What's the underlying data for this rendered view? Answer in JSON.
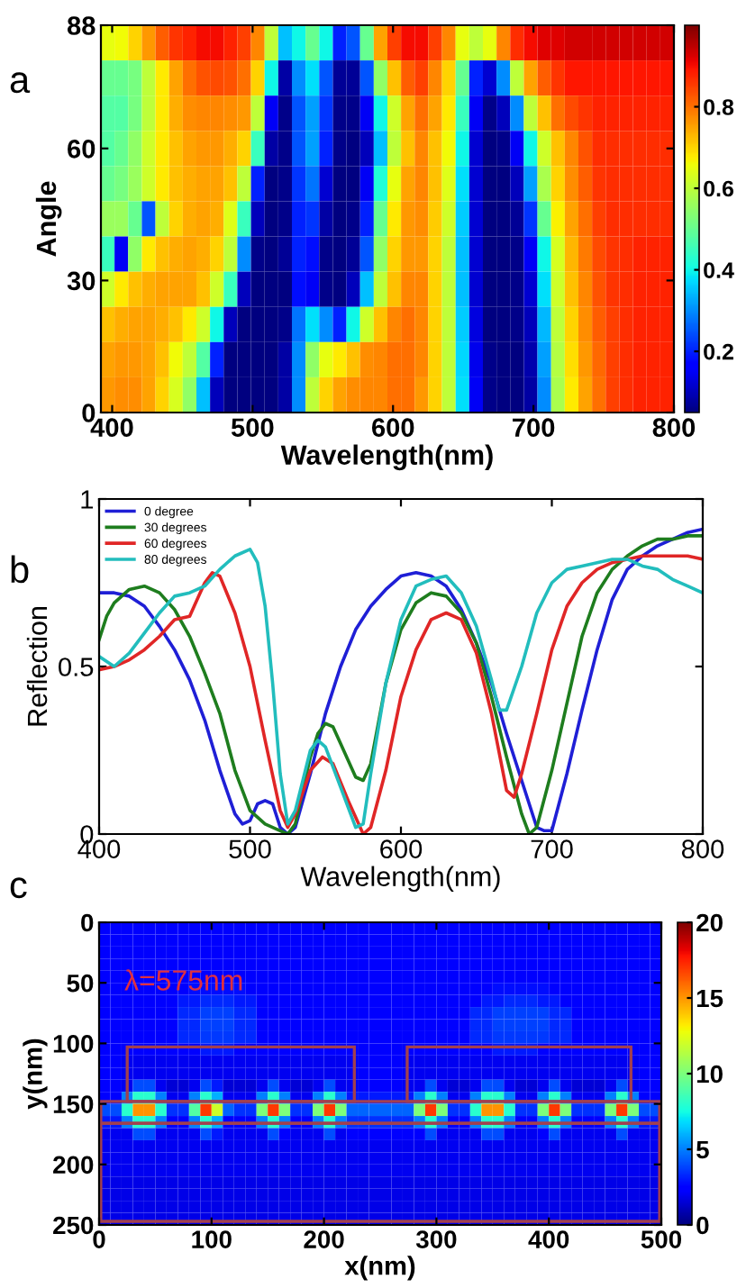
{
  "chart_data": [
    {
      "type": "heatmap",
      "title": "a",
      "xlabel": "Wavelength(nm)",
      "ylabel": "Angle",
      "xlim": [
        392,
        800
      ],
      "xticks": [
        400,
        500,
        600,
        700,
        800
      ],
      "ylim": [
        0,
        88
      ],
      "yticks": [
        0,
        30,
        60,
        88
      ],
      "clim": [
        0.05,
        1.0
      ],
      "cticks": [
        0.2,
        0.4,
        0.6,
        0.8
      ],
      "cells": [
        [
          0.65,
          0.66,
          0.7,
          0.76,
          0.82,
          0.86,
          0.88,
          0.9,
          0.9,
          0.88,
          0.85,
          0.78,
          0.6,
          0.35,
          0.4,
          0.5,
          0.4,
          0.2,
          0.25,
          0.5,
          0.75,
          0.85,
          0.9,
          0.9,
          0.85,
          0.78,
          0.65,
          0.6,
          0.65,
          0.78,
          0.87,
          0.9,
          0.92,
          0.92,
          0.93,
          0.93,
          0.93,
          0.93,
          0.93,
          0.93,
          0.93,
          0.93
        ],
        [
          0.5,
          0.5,
          0.52,
          0.6,
          0.68,
          0.75,
          0.8,
          0.83,
          0.84,
          0.83,
          0.8,
          0.7,
          0.4,
          0.08,
          0.3,
          0.38,
          0.25,
          0.07,
          0.07,
          0.25,
          0.55,
          0.72,
          0.82,
          0.85,
          0.78,
          0.7,
          0.5,
          0.2,
          0.12,
          0.3,
          0.6,
          0.75,
          0.82,
          0.86,
          0.89,
          0.89,
          0.89,
          0.89,
          0.89,
          0.89,
          0.89,
          0.89
        ],
        [
          0.48,
          0.48,
          0.52,
          0.6,
          0.68,
          0.74,
          0.77,
          0.78,
          0.78,
          0.77,
          0.76,
          0.6,
          0.15,
          0.06,
          0.25,
          0.32,
          0.22,
          0.06,
          0.06,
          0.15,
          0.4,
          0.62,
          0.75,
          0.8,
          0.75,
          0.68,
          0.45,
          0.15,
          0.06,
          0.1,
          0.3,
          0.6,
          0.72,
          0.8,
          0.84,
          0.86,
          0.88,
          0.88,
          0.88,
          0.88,
          0.88,
          0.88
        ],
        [
          0.48,
          0.5,
          0.55,
          0.62,
          0.68,
          0.72,
          0.75,
          0.76,
          0.76,
          0.74,
          0.7,
          0.45,
          0.08,
          0.06,
          0.25,
          0.32,
          0.2,
          0.06,
          0.05,
          0.1,
          0.35,
          0.6,
          0.72,
          0.78,
          0.72,
          0.66,
          0.4,
          0.12,
          0.05,
          0.06,
          0.15,
          0.4,
          0.62,
          0.72,
          0.78,
          0.83,
          0.87,
          0.87,
          0.87,
          0.87,
          0.87,
          0.87
        ],
        [
          0.5,
          0.52,
          0.56,
          0.62,
          0.68,
          0.72,
          0.74,
          0.75,
          0.75,
          0.72,
          0.6,
          0.2,
          0.05,
          0.06,
          0.22,
          0.28,
          0.12,
          0.05,
          0.05,
          0.15,
          0.42,
          0.65,
          0.75,
          0.78,
          0.72,
          0.64,
          0.38,
          0.12,
          0.05,
          0.05,
          0.1,
          0.32,
          0.58,
          0.7,
          0.77,
          0.82,
          0.86,
          0.87,
          0.87,
          0.87,
          0.87,
          0.87
        ],
        [
          0.56,
          0.56,
          0.5,
          0.25,
          0.6,
          0.7,
          0.74,
          0.75,
          0.74,
          0.64,
          0.45,
          0.1,
          0.05,
          0.06,
          0.2,
          0.22,
          0.08,
          0.05,
          0.06,
          0.2,
          0.5,
          0.68,
          0.76,
          0.77,
          0.71,
          0.62,
          0.36,
          0.12,
          0.05,
          0.05,
          0.07,
          0.22,
          0.5,
          0.67,
          0.75,
          0.8,
          0.85,
          0.87,
          0.87,
          0.87,
          0.87,
          0.87
        ],
        [
          0.45,
          0.15,
          0.55,
          0.68,
          0.72,
          0.74,
          0.75,
          0.74,
          0.7,
          0.6,
          0.3,
          0.06,
          0.05,
          0.07,
          0.2,
          0.18,
          0.06,
          0.05,
          0.07,
          0.25,
          0.55,
          0.7,
          0.76,
          0.76,
          0.7,
          0.6,
          0.35,
          0.12,
          0.05,
          0.05,
          0.06,
          0.15,
          0.4,
          0.63,
          0.73,
          0.79,
          0.84,
          0.86,
          0.87,
          0.88,
          0.88,
          0.88
        ],
        [
          0.62,
          0.68,
          0.72,
          0.74,
          0.75,
          0.75,
          0.75,
          0.72,
          0.62,
          0.45,
          0.1,
          0.05,
          0.05,
          0.05,
          0.18,
          0.15,
          0.06,
          0.05,
          0.1,
          0.35,
          0.6,
          0.72,
          0.78,
          0.78,
          0.7,
          0.6,
          0.35,
          0.12,
          0.05,
          0.05,
          0.06,
          0.12,
          0.38,
          0.62,
          0.72,
          0.78,
          0.83,
          0.86,
          0.87,
          0.88,
          0.88,
          0.88
        ],
        [
          0.72,
          0.74,
          0.75,
          0.75,
          0.74,
          0.72,
          0.68,
          0.62,
          0.4,
          0.1,
          0.05,
          0.05,
          0.05,
          0.06,
          0.28,
          0.38,
          0.3,
          0.2,
          0.4,
          0.62,
          0.72,
          0.78,
          0.8,
          0.78,
          0.7,
          0.6,
          0.36,
          0.13,
          0.05,
          0.05,
          0.06,
          0.1,
          0.34,
          0.6,
          0.7,
          0.77,
          0.82,
          0.85,
          0.87,
          0.88,
          0.88,
          0.88
        ],
        [
          0.75,
          0.76,
          0.76,
          0.75,
          0.72,
          0.66,
          0.6,
          0.48,
          0.2,
          0.05,
          0.05,
          0.05,
          0.05,
          0.08,
          0.3,
          0.55,
          0.65,
          0.68,
          0.72,
          0.77,
          0.78,
          0.8,
          0.8,
          0.78,
          0.7,
          0.6,
          0.37,
          0.14,
          0.06,
          0.05,
          0.05,
          0.09,
          0.32,
          0.59,
          0.69,
          0.76,
          0.81,
          0.85,
          0.87,
          0.88,
          0.88,
          0.88
        ],
        [
          0.76,
          0.77,
          0.77,
          0.75,
          0.7,
          0.63,
          0.55,
          0.35,
          0.1,
          0.05,
          0.05,
          0.05,
          0.05,
          0.08,
          0.3,
          0.6,
          0.7,
          0.75,
          0.77,
          0.78,
          0.78,
          0.8,
          0.8,
          0.76,
          0.7,
          0.6,
          0.38,
          0.15,
          0.06,
          0.05,
          0.05,
          0.08,
          0.3,
          0.58,
          0.68,
          0.75,
          0.8,
          0.85,
          0.87,
          0.88,
          0.88,
          0.88
        ]
      ]
    },
    {
      "type": "line",
      "title": "b",
      "xlabel": "Wavelength(nm)",
      "ylabel": "Reflection",
      "xlim": [
        400,
        800
      ],
      "xticks": [
        400,
        500,
        600,
        700,
        800
      ],
      "ylim": [
        0,
        1
      ],
      "yticks": [
        0,
        0.5,
        1
      ],
      "legend": "top left",
      "series": [
        {
          "name": "0 degree",
          "color": "#1f1fd6",
          "x": [
            400,
            410,
            420,
            430,
            440,
            450,
            460,
            470,
            480,
            490,
            495,
            500,
            505,
            510,
            515,
            520,
            525,
            530,
            540,
            550,
            560,
            570,
            580,
            590,
            600,
            610,
            620,
            630,
            640,
            650,
            660,
            670,
            680,
            690,
            695,
            700,
            710,
            720,
            730,
            740,
            750,
            760,
            770,
            780,
            790,
            800
          ],
          "values": [
            0.72,
            0.72,
            0.71,
            0.68,
            0.62,
            0.55,
            0.46,
            0.34,
            0.19,
            0.06,
            0.03,
            0.04,
            0.09,
            0.1,
            0.09,
            0.02,
            0.0,
            0.02,
            0.18,
            0.36,
            0.5,
            0.61,
            0.68,
            0.73,
            0.77,
            0.78,
            0.77,
            0.74,
            0.67,
            0.57,
            0.45,
            0.3,
            0.16,
            0.02,
            0.01,
            0.01,
            0.18,
            0.37,
            0.55,
            0.7,
            0.79,
            0.83,
            0.86,
            0.88,
            0.9,
            0.91
          ]
        },
        {
          "name": "30 degrees",
          "color": "#1e7d1e",
          "x": [
            400,
            405,
            410,
            420,
            430,
            440,
            450,
            460,
            470,
            480,
            490,
            500,
            510,
            520,
            525,
            530,
            540,
            545,
            550,
            555,
            560,
            570,
            575,
            580,
            590,
            600,
            610,
            620,
            630,
            640,
            650,
            660,
            670,
            680,
            685,
            690,
            700,
            710,
            720,
            730,
            740,
            750,
            760,
            770,
            780,
            790,
            800
          ],
          "values": [
            0.58,
            0.65,
            0.69,
            0.73,
            0.74,
            0.72,
            0.67,
            0.59,
            0.48,
            0.36,
            0.19,
            0.07,
            0.03,
            0.01,
            0.0,
            0.03,
            0.23,
            0.3,
            0.33,
            0.32,
            0.27,
            0.17,
            0.16,
            0.21,
            0.45,
            0.61,
            0.69,
            0.72,
            0.71,
            0.66,
            0.57,
            0.41,
            0.23,
            0.06,
            0.0,
            0.02,
            0.19,
            0.39,
            0.59,
            0.72,
            0.79,
            0.83,
            0.86,
            0.88,
            0.88,
            0.89,
            0.89
          ]
        },
        {
          "name": "60 degrees",
          "color": "#e02626",
          "x": [
            400,
            410,
            420,
            430,
            440,
            450,
            460,
            465,
            470,
            475,
            480,
            490,
            500,
            510,
            520,
            525,
            530,
            540,
            548,
            555,
            565,
            575,
            580,
            590,
            600,
            610,
            620,
            630,
            640,
            650,
            660,
            670,
            675,
            680,
            690,
            700,
            710,
            720,
            730,
            740,
            750,
            760,
            770,
            780,
            790,
            800
          ],
          "values": [
            0.49,
            0.5,
            0.52,
            0.55,
            0.59,
            0.64,
            0.65,
            0.7,
            0.75,
            0.78,
            0.77,
            0.66,
            0.5,
            0.28,
            0.07,
            0.02,
            0.06,
            0.19,
            0.23,
            0.21,
            0.1,
            0.0,
            0.02,
            0.19,
            0.41,
            0.55,
            0.64,
            0.66,
            0.64,
            0.54,
            0.36,
            0.13,
            0.11,
            0.18,
            0.36,
            0.55,
            0.68,
            0.75,
            0.79,
            0.81,
            0.82,
            0.83,
            0.83,
            0.83,
            0.83,
            0.82
          ]
        },
        {
          "name": "80 degrees",
          "color": "#22bdbd",
          "x": [
            400,
            410,
            420,
            430,
            440,
            450,
            460,
            470,
            480,
            490,
            500,
            505,
            510,
            515,
            520,
            525,
            530,
            540,
            545,
            550,
            560,
            570,
            575,
            580,
            590,
            600,
            610,
            620,
            630,
            640,
            650,
            660,
            665,
            670,
            680,
            690,
            700,
            710,
            720,
            730,
            740,
            750,
            760,
            770,
            780,
            790,
            800
          ],
          "values": [
            0.53,
            0.5,
            0.54,
            0.6,
            0.66,
            0.71,
            0.72,
            0.74,
            0.79,
            0.83,
            0.85,
            0.81,
            0.68,
            0.45,
            0.18,
            0.03,
            0.07,
            0.25,
            0.28,
            0.26,
            0.14,
            0.02,
            0.03,
            0.18,
            0.45,
            0.64,
            0.74,
            0.76,
            0.77,
            0.72,
            0.62,
            0.46,
            0.37,
            0.37,
            0.5,
            0.66,
            0.75,
            0.79,
            0.8,
            0.81,
            0.82,
            0.82,
            0.8,
            0.79,
            0.76,
            0.74,
            0.72
          ]
        }
      ]
    },
    {
      "type": "heatmap",
      "title": "c",
      "xlabel": "x(nm)",
      "ylabel": "y(nm)",
      "annotations": [
        "λ=575nm"
      ],
      "xlim": [
        0,
        500
      ],
      "xticks": [
        0,
        100,
        200,
        300,
        400,
        500
      ],
      "ylim": [
        250,
        0
      ],
      "yticks": [
        0,
        50,
        100,
        150,
        200,
        250
      ],
      "clim": [
        0,
        20
      ],
      "cticks": [
        0,
        5,
        10,
        15,
        20
      ],
      "cells": [
        [
          2.5,
          2.5,
          2.5,
          2.5,
          2.5,
          2.5,
          2.5,
          2.5,
          2.5,
          2.5,
          2.5,
          2.5,
          2.5,
          2.5,
          2.5,
          2.5,
          2.5,
          2.5,
          2.5,
          2.5,
          2.5,
          2.5,
          2.5,
          2.5,
          2.5,
          2.5,
          2.5,
          2.5,
          2.5,
          2.5,
          2.5,
          2.5,
          2.5,
          2.5,
          2.5,
          2.5,
          2.5,
          2.5,
          2.5,
          2.5,
          2.5,
          2.5,
          2.5,
          2.5,
          2.5,
          2.5,
          2.5,
          2.5,
          2.5,
          2.5
        ],
        [
          2.5,
          2.5,
          2.5,
          2.5,
          2.5,
          2.5,
          2.5,
          2.5,
          2.5,
          2.5,
          2.5,
          2.5,
          2.5,
          2.5,
          2.5,
          2.5,
          2.5,
          2.5,
          2.5,
          2.5,
          2.5,
          2.5,
          2.5,
          2.5,
          2.5,
          2.5,
          2.5,
          2.5,
          2.5,
          2.5,
          2.5,
          2.5,
          2.5,
          2.5,
          2.5,
          2.5,
          2.5,
          2.5,
          2.5,
          2.5,
          2.5,
          2.5,
          2.5,
          2.5,
          2.5,
          2.5,
          2.5,
          2.5,
          2.5,
          2.5
        ],
        [
          2.5,
          2.5,
          2.5,
          2.5,
          2.5,
          2.5,
          2.5,
          2.5,
          2.5,
          2.5,
          2.5,
          2.5,
          2.5,
          2.5,
          2.5,
          2.5,
          2.5,
          2.5,
          2.5,
          2.5,
          2.5,
          2.5,
          2.5,
          2.5,
          2.5,
          2.5,
          2.5,
          2.5,
          2.5,
          2.5,
          2.5,
          2.5,
          2.5,
          2.5,
          2.5,
          2.5,
          2.5,
          2.5,
          2.5,
          2.5,
          2.5,
          2.5,
          2.5,
          2.5,
          2.5,
          2.5,
          2.5,
          2.5,
          2.5,
          2.5
        ],
        [
          2.5,
          2.5,
          2.5,
          2.5,
          2.5,
          2.5,
          2.5,
          2.5,
          2.5,
          2.5,
          2.5,
          2.5,
          2.5,
          2.5,
          2.5,
          2.5,
          2.5,
          2.5,
          2.5,
          2.5,
          2.5,
          2.5,
          2.5,
          2.5,
          2.5,
          2.5,
          2.5,
          2.5,
          2.5,
          2.5,
          2.5,
          2.5,
          2.5,
          2.5,
          2.5,
          2.5,
          2.5,
          2.5,
          2.5,
          2.5,
          2.5,
          2.5,
          2.5,
          2.5,
          2.5,
          2.5,
          2.5,
          2.5,
          2.5,
          2.5
        ],
        [
          2.5,
          2.5,
          2.5,
          2.5,
          2.5,
          2.5,
          2.5,
          2.5,
          2.5,
          2.5,
          2.5,
          2.5,
          2.5,
          2.5,
          2.5,
          2.5,
          2.5,
          2.5,
          2.5,
          2.5,
          2.5,
          2.5,
          2.5,
          2.5,
          2.5,
          2.5,
          2.5,
          2.5,
          2.5,
          2.5,
          2.5,
          2.5,
          2.5,
          2.5,
          2.5,
          2.5,
          2.5,
          2.5,
          2.5,
          2.5,
          2.5,
          2.5,
          2.5,
          2.5,
          2.5,
          2.5,
          2.5,
          2.5,
          2.5,
          2.5
        ],
        [
          2.5,
          2.5,
          2.5,
          2.5,
          2.5,
          2.5,
          2.5,
          2.5,
          2.8,
          2.8,
          2.8,
          2.8,
          2.8,
          2.5,
          2.5,
          2.5,
          2.5,
          2.5,
          2.5,
          2.5,
          2.5,
          2.5,
          2.5,
          2.5,
          2.5,
          2.5,
          2.5,
          2.5,
          2.5,
          2.5,
          2.5,
          2.5,
          2.5,
          2.5,
          2.5,
          2.8,
          2.8,
          2.8,
          2.8,
          2.8,
          2.5,
          2.5,
          2.5,
          2.5,
          2.5,
          2.5,
          2.5,
          2.5,
          2.5,
          2.5
        ],
        [
          2.5,
          2.5,
          2.5,
          2.5,
          2.5,
          2.5,
          2.5,
          3,
          3,
          3.3,
          3.3,
          3.3,
          3,
          3,
          2.5,
          2.5,
          2.5,
          2.5,
          2.5,
          2.5,
          2.5,
          2.5,
          2.5,
          2.5,
          2.5,
          2.5,
          2.5,
          2.5,
          2.5,
          2.5,
          2.5,
          2.5,
          2.5,
          2.5,
          3,
          3,
          3.3,
          3.3,
          3.3,
          3,
          3,
          2.5,
          2.5,
          2.5,
          2.5,
          2.5,
          2.5,
          2.5,
          2.5,
          2.5
        ],
        [
          2.5,
          2.5,
          2.5,
          2.5,
          2.5,
          2.5,
          2.5,
          3.3,
          3.3,
          3.8,
          3.8,
          3.8,
          3.3,
          3.3,
          2.5,
          2.5,
          2.5,
          2.5,
          2.5,
          2.5,
          2.5,
          2.5,
          2.5,
          2.5,
          2.5,
          2.5,
          2.5,
          2.5,
          2.5,
          2.5,
          2.5,
          2.5,
          2.5,
          3.3,
          3.3,
          3.8,
          3.8,
          3.8,
          3.8,
          3.8,
          3.3,
          3.3,
          2.5,
          2.5,
          2.5,
          2.5,
          2.5,
          2.5,
          2.5,
          2.5
        ],
        [
          2.5,
          2.5,
          2.5,
          2.5,
          2.5,
          2.5,
          2.5,
          3.3,
          3.3,
          3.8,
          3.8,
          3.8,
          3.3,
          3.3,
          2.5,
          2.5,
          2.5,
          2.5,
          2.5,
          2.5,
          2.5,
          2.5,
          2.5,
          2.5,
          2.5,
          2.5,
          2.5,
          2.5,
          2.5,
          2.5,
          2.5,
          2.5,
          2.5,
          3.3,
          3.3,
          3.8,
          3.8,
          3.8,
          3.8,
          3.8,
          3.3,
          3.3,
          2.5,
          2.5,
          2.5,
          2.5,
          2.5,
          2.5,
          2.5,
          2.5
        ],
        [
          2.5,
          2.5,
          2.5,
          2.5,
          2.5,
          2.5,
          2.5,
          3.3,
          3.3,
          3.6,
          3.6,
          3.6,
          3.3,
          3.3,
          2.5,
          2.5,
          2.5,
          2.5,
          2.5,
          2.5,
          2.5,
          2.5,
          2.5,
          2.5,
          2.5,
          2.5,
          2.5,
          2.5,
          2.5,
          2.5,
          2.5,
          2.5,
          2.5,
          3.3,
          3.3,
          3.6,
          3.6,
          3.6,
          3.6,
          3.6,
          3.3,
          3.3,
          2.5,
          2.5,
          2.5,
          2.5,
          2.5,
          2.5,
          2.5,
          2.5
        ],
        [
          2.5,
          2.5,
          2.2,
          2.2,
          2.2,
          2.2,
          2.2,
          2.2,
          2.2,
          3,
          3,
          3,
          2.2,
          2.2,
          2.2,
          2.2,
          2.2,
          2.2,
          2.2,
          2.2,
          2.2,
          2.2,
          2.2,
          2.5,
          2.5,
          2.5,
          2.5,
          2.2,
          2.2,
          2.2,
          2.2,
          2.2,
          2.2,
          2.2,
          2.2,
          3,
          3,
          3,
          3,
          2.2,
          2.2,
          2.2,
          2.2,
          2.2,
          2.2,
          2.2,
          2.2,
          2.2,
          2.5,
          2.5
        ],
        [
          2.5,
          2.5,
          2,
          2,
          2,
          2,
          2,
          2,
          2,
          2,
          2,
          2,
          2,
          2,
          2,
          2,
          2,
          2,
          2,
          2,
          2,
          2,
          2,
          2.5,
          2.5,
          2.5,
          2.5,
          2,
          2,
          2,
          2,
          2,
          2,
          2,
          2,
          2,
          2,
          2,
          2,
          2,
          2,
          2,
          2,
          2,
          2,
          2,
          2,
          2,
          2.5,
          2.5
        ],
        [
          2.5,
          2.5,
          2,
          2,
          2,
          2,
          2,
          2,
          2,
          2,
          2,
          2,
          2,
          2,
          2,
          2,
          2,
          2,
          2,
          2,
          2,
          2,
          2,
          2.5,
          2.5,
          2.5,
          2.5,
          2,
          2,
          2,
          2,
          2,
          2,
          2,
          2,
          2,
          2,
          2,
          2,
          2,
          2,
          2,
          2,
          2,
          2,
          2,
          2,
          2,
          2.5,
          2.5
        ],
        [
          2.5,
          2.5,
          2,
          4,
          4,
          2,
          1.5,
          1.5,
          2,
          4,
          3,
          1.5,
          1.5,
          1.5,
          2,
          4,
          2,
          1.5,
          1.5,
          2,
          4,
          2,
          2,
          2.5,
          2.5,
          2.5,
          2.5,
          2,
          2,
          4,
          2,
          1.5,
          1.5,
          2,
          4,
          4,
          2,
          1.5,
          1.5,
          2,
          4,
          2,
          1.5,
          1.5,
          1.5,
          2,
          4,
          2,
          2.5,
          2.5
        ],
        [
          2.5,
          2.5,
          5,
          8,
          8,
          5,
          2,
          2,
          5,
          8,
          6,
          2,
          2,
          2,
          5,
          8,
          5,
          2,
          2,
          5,
          8,
          5,
          3,
          3,
          3,
          3,
          3,
          3,
          5,
          8,
          5,
          2,
          2,
          5,
          8,
          8,
          5,
          2,
          2,
          5,
          8,
          5,
          2,
          2,
          2,
          5,
          8,
          5,
          2.5,
          2.5
        ],
        [
          4,
          4,
          8,
          15,
          15,
          8,
          3.5,
          3.5,
          9,
          17,
          12,
          4.5,
          3.5,
          3.5,
          10,
          17,
          10,
          3.5,
          3.5,
          10,
          17,
          10,
          4.5,
          4.5,
          4.5,
          4.5,
          4.5,
          4.5,
          10,
          17,
          10,
          3.5,
          3.5,
          8,
          15,
          15,
          8,
          3.5,
          3.5,
          10,
          17,
          10,
          3.5,
          3.5,
          3.5,
          10,
          17,
          10,
          4,
          4
        ],
        [
          3,
          3,
          5,
          8,
          8,
          5,
          2.5,
          2.5,
          5,
          8,
          6,
          2.5,
          2.5,
          2.5,
          5,
          8,
          5,
          2.5,
          2.5,
          5,
          8,
          5,
          3.5,
          3.5,
          3.5,
          3.5,
          3.5,
          3.5,
          5,
          8,
          5,
          2.5,
          2.5,
          5,
          8,
          8,
          5,
          2.5,
          2.5,
          5,
          8,
          5,
          2.5,
          2.5,
          2.5,
          5,
          8,
          5,
          3,
          3
        ],
        [
          2,
          2,
          2,
          4,
          4,
          2,
          2,
          2,
          2,
          4,
          3,
          2,
          2,
          2,
          2,
          4,
          2.5,
          2,
          2,
          2,
          4,
          2,
          2.2,
          2.2,
          2.2,
          2.2,
          2.2,
          2.2,
          2.5,
          4,
          2,
          2,
          2,
          2,
          4,
          4,
          2,
          2,
          2,
          2.5,
          4,
          2,
          2,
          2,
          2,
          2,
          4,
          2,
          2,
          2
        ],
        [
          2,
          2,
          2,
          2,
          2,
          2,
          2,
          2,
          2,
          2,
          2,
          2,
          2,
          2,
          2,
          2,
          2,
          2,
          2,
          2,
          2,
          2,
          2,
          2,
          2,
          2,
          2,
          2,
          2,
          2,
          2,
          2,
          2,
          2,
          2,
          2,
          2,
          2,
          2,
          2,
          2,
          2,
          2,
          2,
          2,
          2,
          2,
          2,
          2,
          2
        ],
        [
          2,
          2,
          2,
          2,
          2,
          2,
          2,
          2,
          2,
          2,
          2,
          2,
          2,
          2,
          2,
          2,
          2,
          2,
          2,
          2,
          2,
          2,
          2,
          2,
          2,
          2,
          2,
          2,
          2,
          2,
          2,
          2,
          2,
          2,
          2,
          2,
          2,
          2,
          2,
          2,
          2,
          2,
          2,
          2,
          2,
          2,
          2,
          2,
          2,
          2
        ],
        [
          2,
          2,
          2,
          2,
          2,
          2,
          2,
          2,
          2,
          2,
          2,
          2,
          2,
          2,
          2,
          2,
          2,
          2,
          2,
          2,
          2,
          2,
          2,
          2,
          2,
          2,
          2,
          2,
          2,
          2,
          2,
          2,
          2,
          2,
          2,
          2,
          2,
          2,
          2,
          2,
          2,
          2,
          2,
          2,
          2,
          2,
          2,
          2,
          2,
          2
        ],
        [
          1.8,
          1.8,
          1.8,
          1.8,
          1.8,
          1.8,
          1.8,
          1.8,
          1.8,
          1.8,
          1.8,
          1.8,
          1.8,
          1.8,
          1.8,
          1.8,
          1.8,
          1.8,
          1.8,
          1.8,
          1.8,
          1.8,
          1.8,
          1.8,
          1.8,
          1.8,
          1.8,
          1.8,
          1.8,
          1.8,
          1.8,
          1.8,
          1.8,
          1.8,
          1.8,
          1.8,
          1.8,
          1.8,
          1.8,
          1.8,
          1.8,
          1.8,
          1.8,
          1.8,
          1.8,
          1.8,
          1.8,
          1.8,
          1.8,
          1.8
        ],
        [
          1.8,
          1.8,
          1.8,
          1.8,
          1.8,
          1.8,
          1.8,
          1.8,
          1.8,
          1.8,
          1.8,
          1.8,
          1.8,
          1.8,
          1.8,
          1.8,
          1.8,
          1.8,
          1.8,
          1.8,
          1.8,
          1.8,
          1.8,
          1.8,
          1.8,
          1.8,
          1.8,
          1.8,
          1.8,
          1.8,
          1.8,
          1.8,
          1.8,
          1.8,
          1.8,
          1.8,
          1.8,
          1.8,
          1.8,
          1.8,
          1.8,
          1.8,
          1.8,
          1.8,
          1.8,
          1.8,
          1.8,
          1.8,
          1.8,
          1.8
        ],
        [
          1.8,
          1.8,
          1.8,
          1.8,
          1.8,
          1.8,
          1.8,
          1.8,
          1.8,
          1.8,
          1.8,
          1.8,
          1.8,
          1.8,
          1.8,
          1.8,
          1.8,
          1.8,
          1.8,
          1.8,
          1.8,
          1.8,
          1.8,
          1.8,
          1.8,
          1.8,
          1.8,
          1.8,
          1.8,
          1.8,
          1.8,
          1.8,
          1.8,
          1.8,
          1.8,
          1.8,
          1.8,
          1.8,
          1.8,
          1.8,
          1.8,
          1.8,
          1.8,
          1.8,
          1.8,
          1.8,
          1.8,
          1.8,
          1.8,
          1.8
        ],
        [
          1.8,
          1.8,
          1.8,
          1.8,
          1.8,
          1.8,
          1.8,
          1.8,
          1.8,
          1.8,
          1.8,
          1.8,
          1.8,
          1.8,
          1.8,
          1.8,
          1.8,
          1.8,
          1.8,
          1.8,
          1.8,
          1.8,
          1.8,
          1.8,
          1.8,
          1.8,
          1.8,
          1.8,
          1.8,
          1.8,
          1.8,
          1.8,
          1.8,
          1.8,
          1.8,
          1.8,
          1.8,
          1.8,
          1.8,
          1.8,
          1.8,
          1.8,
          1.8,
          1.8,
          1.8,
          1.8,
          1.8,
          1.8,
          1.8,
          1.8
        ]
      ]
    }
  ]
}
